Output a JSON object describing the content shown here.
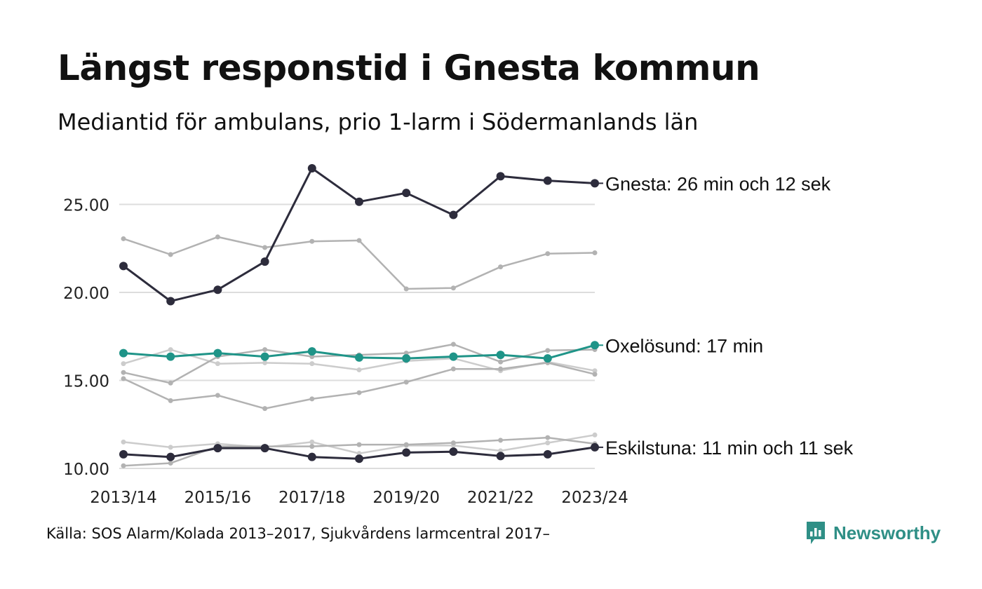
{
  "header": {
    "title": "Längst responstid i Gnesta kommun",
    "subtitle": "Mediantid för ambulans, prio 1-larm i Södermanlands län"
  },
  "footer": {
    "source": "Källa: SOS Alarm/Kolada 2013–2017, Sjukvårdens larmcentral 2017–",
    "brand": "Newsworthy"
  },
  "colors": {
    "highlight_dark": "#2d2c3c",
    "highlight_teal": "#1f9488",
    "context_gray": "#b2b2b2",
    "context_light": "#cccccc",
    "grid": "#dddddd"
  },
  "chart_data": {
    "type": "line",
    "title": "Längst responstid i Gnesta kommun",
    "subtitle": "Mediantid för ambulans, prio 1-larm i Södermanlands län",
    "xlabel": "",
    "ylabel": "",
    "x": [
      "2013/14",
      "2014/15",
      "2015/16",
      "2016/17",
      "2017/18",
      "2018/19",
      "2019/20",
      "2020/21",
      "2021/22",
      "2022/23",
      "2023/24"
    ],
    "x_tick_labels": [
      "2013/14",
      "2015/16",
      "2017/18",
      "2019/20",
      "2021/22",
      "2023/24"
    ],
    "ylim": [
      10,
      27.5
    ],
    "y_ticks": [
      10,
      15,
      20,
      25
    ],
    "y_tick_labels": [
      "10.00",
      "15.00",
      "20.00",
      "25.00"
    ],
    "grid": true,
    "legend": "direct labels at line ends",
    "series": [
      {
        "name": "Gnesta",
        "label": "Gnesta: 26 min och 12 sek",
        "style": "highlight_dark",
        "values": [
          21.5,
          19.5,
          20.15,
          21.75,
          27.05,
          25.15,
          25.65,
          24.4,
          26.6,
          26.35,
          26.2
        ]
      },
      {
        "name": "Oxelösund",
        "label": "Oxelösund: 17 min",
        "style": "highlight_teal",
        "values": [
          16.55,
          16.35,
          16.55,
          16.35,
          16.65,
          16.3,
          16.25,
          16.35,
          16.45,
          16.25,
          17.0
        ]
      },
      {
        "name": "Eskilstuna",
        "label": "Eskilstuna: 11 min och 11 sek",
        "style": "highlight_dark",
        "values": [
          10.8,
          10.65,
          11.15,
          11.15,
          10.65,
          10.55,
          10.9,
          10.95,
          10.7,
          10.8,
          11.2
        ]
      },
      {
        "style": "context_gray",
        "values": [
          23.05,
          22.15,
          23.15,
          22.55,
          22.9,
          22.95,
          20.2,
          20.25,
          21.45,
          22.2,
          22.25
        ]
      },
      {
        "style": "context_light",
        "values": [
          15.95,
          16.75,
          15.95,
          16.0,
          15.95,
          15.6,
          16.1,
          16.25,
          15.55,
          16.05,
          15.55
        ]
      },
      {
        "style": "context_gray",
        "values": [
          15.45,
          14.85,
          16.35,
          16.75,
          16.35,
          16.45,
          16.55,
          17.05,
          16.05,
          16.7,
          16.75
        ]
      },
      {
        "style": "context_gray",
        "values": [
          15.1,
          13.85,
          14.15,
          13.4,
          13.95,
          14.3,
          14.9,
          15.65,
          15.65,
          16.0,
          15.35
        ]
      },
      {
        "style": "context_light",
        "values": [
          11.5,
          11.2,
          11.4,
          11.2,
          11.5,
          10.85,
          11.3,
          11.3,
          11.0,
          11.45,
          11.9
        ]
      },
      {
        "style": "context_gray",
        "values": [
          10.15,
          10.3,
          11.25,
          11.25,
          11.25,
          11.35,
          11.35,
          11.45,
          11.6,
          11.75,
          11.4
        ]
      }
    ]
  }
}
